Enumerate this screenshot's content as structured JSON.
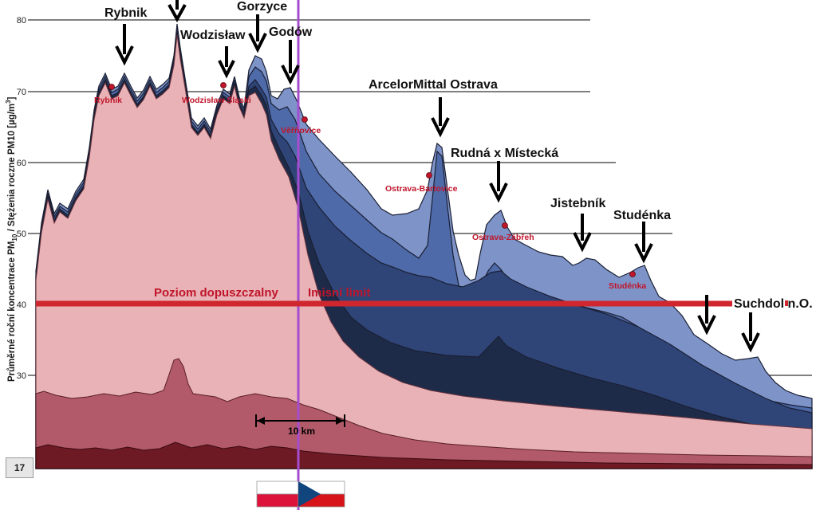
{
  "chart_data": {
    "type": "area",
    "ylabel_main": "Průměrné roční koncentrace PM",
    "ylabel_sub": "10",
    "ylabel_rest": " / Stężenia roczne PM10  [µg/m",
    "ylabel_sup": "3",
    "ylabel_end": "]",
    "yticks": [
      "80",
      "70",
      "60",
      "50",
      "40",
      "30"
    ],
    "limit_value": 40,
    "limit_label_pl": "Poziom dopuszczalny",
    "limit_label_cz": "Imisní limit",
    "scale_label": "10 km",
    "arrow_labels": [
      "Rybnik",
      "Gorzyce",
      "Wodzisław",
      "Godów",
      "ArcelorMittal Ostrava",
      "Rudná x Místecká",
      "Jistebník",
      "Studénka",
      "Suchdol n.O."
    ],
    "station_labels": [
      "Rybnik",
      "Wodzisław Śląski",
      "Věřňovice",
      "Ostrava-Bartovice",
      "Ostrava-Zábřeh",
      "Studénka"
    ],
    "colors": {
      "total": "#7e94c9",
      "layer2": "#4e6aa8",
      "layer3": "#2f4578",
      "layer4": "#1e2b48",
      "pl_main": "#e8b2b6",
      "pl_mid": "#b25a6a",
      "pl_base": "#6e1a24",
      "limit": "#d0262e",
      "labels": "#c0152a",
      "border": "#a64ccf"
    }
  },
  "slide_number": "17"
}
